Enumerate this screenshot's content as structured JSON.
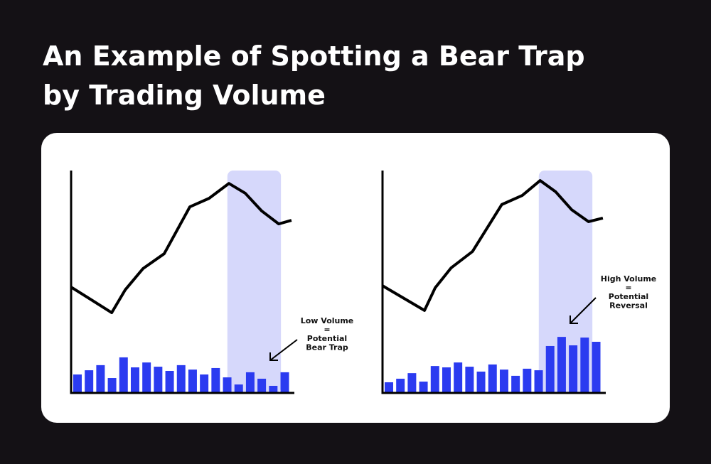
{
  "title": [
    "An Example of Spotting a Bear Trap",
    "by Trading Volume"
  ],
  "chart_data": [
    {
      "type": "combo",
      "xlim": [
        0,
        100
      ],
      "ylim": [
        0,
        100
      ],
      "price": {
        "color": "#000000",
        "x": [
          0,
          18.2,
          24.2,
          32.2,
          41.7,
          53.2,
          61.8,
          70.7,
          78.0,
          85.4,
          93.0,
          98.7
        ],
        "values": [
          47.6,
          36.1,
          46.3,
          55.9,
          62.6,
          83.7,
          87.5,
          94.2,
          89.8,
          81.8,
          76.0,
          77.6
        ]
      },
      "volume": {
        "color": "#2b3bf0",
        "values": [
          8.3,
          10.2,
          12.5,
          6.7,
          16,
          11.5,
          13.7,
          11.8,
          9.9,
          12.5,
          10.5,
          8.3,
          11.2,
          7,
          3.8,
          9.3,
          6.4,
          3.2,
          9.3
        ]
      },
      "highlight": {
        "range": [
          70,
          94
        ],
        "color": "#d6d8fb"
      },
      "annotation": [
        "Low Volume",
        "=",
        "Potential",
        "Bear Trap"
      ]
    },
    {
      "type": "combo",
      "xlim": [
        0,
        100
      ],
      "ylim": [
        0,
        100
      ],
      "price": {
        "color": "#000000",
        "x": [
          0,
          18.8,
          23.6,
          30.7,
          40.3,
          53.4,
          62.6,
          70.6,
          77.6,
          84.7,
          92.3,
          98.7
        ],
        "values": [
          48.2,
          37.1,
          47.3,
          56.2,
          63.6,
          84.7,
          88.8,
          95.5,
          90.4,
          82.4,
          77.0,
          78.6
        ]
      },
      "volume": {
        "color": "#2b3bf0",
        "values": [
          4.8,
          6.4,
          8.9,
          5.1,
          12.1,
          11.5,
          13.7,
          11.8,
          9.6,
          12.8,
          10.5,
          7.7,
          10.9,
          10.2,
          21.1,
          25.2,
          21.4,
          24.9,
          23
        ]
      },
      "highlight": {
        "range": [
          70,
          94
        ],
        "color": "#d6d8fb"
      },
      "annotation": [
        "High Volume",
        "=",
        "Potential",
        "Reversal"
      ]
    }
  ]
}
